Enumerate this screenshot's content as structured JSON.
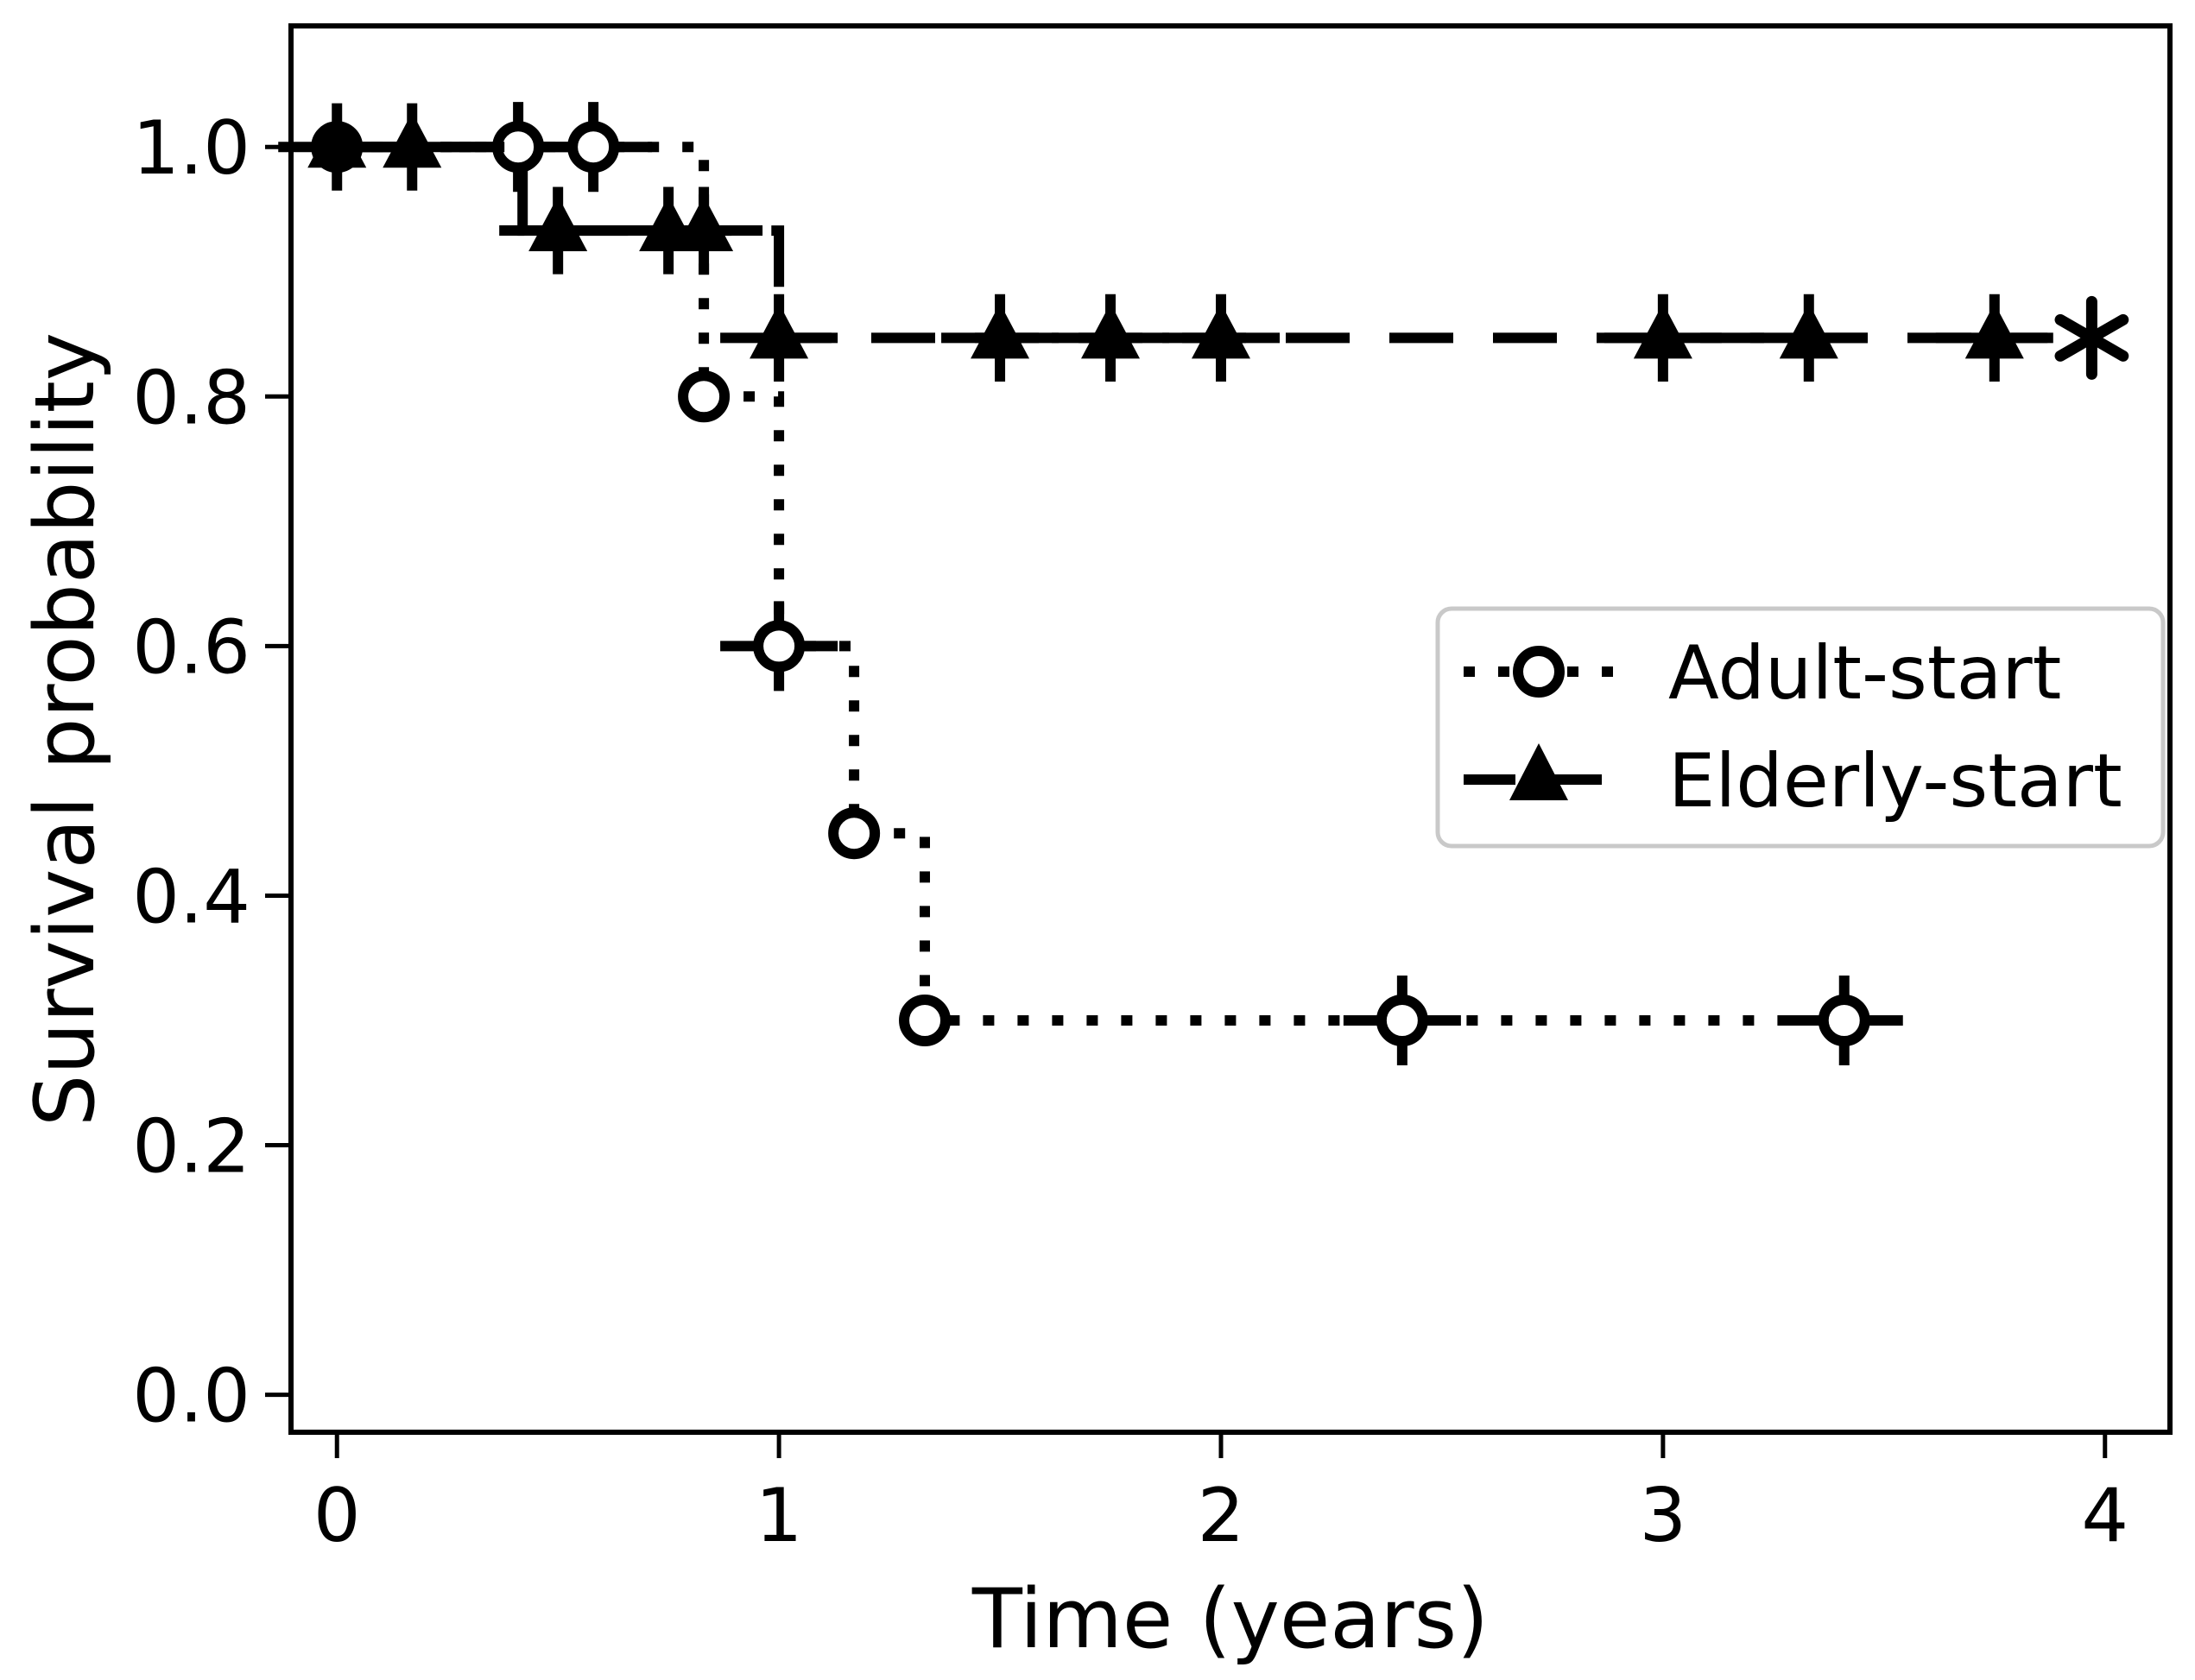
{
  "chart_data": {
    "type": "line",
    "subtype": "kaplan-meier-step-plot",
    "title": "",
    "xlabel": "Time (years)",
    "ylabel": "Survival probability",
    "xlim": [
      -0.104,
      4.147
    ],
    "ylim": [
      -0.03,
      1.097
    ],
    "grid": false,
    "xticks": [
      {
        "v": 0,
        "label": "0"
      },
      {
        "v": 1,
        "label": "1"
      },
      {
        "v": 2,
        "label": "2"
      },
      {
        "v": 3,
        "label": "3"
      },
      {
        "v": 4,
        "label": "4"
      }
    ],
    "yticks": [
      {
        "v": 0.0,
        "label": "0.0"
      },
      {
        "v": 0.2,
        "label": "0.2"
      },
      {
        "v": 0.4,
        "label": "0.4"
      },
      {
        "v": 0.6,
        "label": "0.6"
      },
      {
        "v": 0.8,
        "label": "0.8"
      },
      {
        "v": 1.0,
        "label": "1.0"
      }
    ],
    "series": [
      {
        "name": "Adult-start",
        "line_style": "dotted",
        "marker": "open-circle",
        "color": "#000000",
        "yerr": 0.036,
        "steps": [
          [
            0,
            1.0
          ],
          [
            0.83,
            1.0
          ],
          [
            0.83,
            0.8
          ],
          [
            1.0,
            0.8
          ],
          [
            1.0,
            0.6
          ],
          [
            1.17,
            0.6
          ],
          [
            1.17,
            0.45
          ],
          [
            1.33,
            0.45
          ],
          [
            1.33,
            0.3
          ],
          [
            3.52,
            0.3
          ]
        ],
        "points": [
          {
            "x": 0.0,
            "y": 1.0,
            "err": false
          },
          {
            "x": 0.41,
            "y": 1.0,
            "err": true
          },
          {
            "x": 0.58,
            "y": 1.0,
            "err": true
          },
          {
            "x": 0.83,
            "y": 0.8,
            "err": false
          },
          {
            "x": 1.0,
            "y": 0.6,
            "err": true
          },
          {
            "x": 1.17,
            "y": 0.45,
            "err": false
          },
          {
            "x": 1.33,
            "y": 0.3,
            "err": false
          },
          {
            "x": 2.41,
            "y": 0.3,
            "err": true
          },
          {
            "x": 3.41,
            "y": 0.3,
            "err": true
          }
        ]
      },
      {
        "name": "Elderly-start",
        "line_style": "dashed",
        "marker": "filled-triangle",
        "color": "#000000",
        "yerr": 0.035,
        "steps": [
          [
            0,
            1.0
          ],
          [
            0.42,
            1.0
          ],
          [
            0.42,
            0.933
          ],
          [
            1.0,
            0.933
          ],
          [
            1.0,
            0.847
          ],
          [
            3.87,
            0.847
          ]
        ],
        "points": [
          {
            "x": 0.0,
            "y": 1.0,
            "err": true
          },
          {
            "x": 0.17,
            "y": 1.0,
            "err": true
          },
          {
            "x": 0.5,
            "y": 0.933,
            "err": true
          },
          {
            "x": 0.75,
            "y": 0.933,
            "err": true
          },
          {
            "x": 0.83,
            "y": 0.933,
            "err": true
          },
          {
            "x": 1.0,
            "y": 0.847,
            "err": true
          },
          {
            "x": 1.5,
            "y": 0.847,
            "err": true
          },
          {
            "x": 1.75,
            "y": 0.847,
            "err": true
          },
          {
            "x": 2.0,
            "y": 0.847,
            "err": true
          },
          {
            "x": 3.0,
            "y": 0.847,
            "err": true
          },
          {
            "x": 3.33,
            "y": 0.847,
            "err": true
          },
          {
            "x": 3.75,
            "y": 0.847,
            "err": true
          }
        ]
      }
    ],
    "annotations": [
      {
        "text": "*",
        "shape": "six-ray-asterisk",
        "x": 3.97,
        "y": 0.847
      }
    ],
    "legend": {
      "position": "center-right",
      "entries": [
        {
          "label": "Adult-start"
        },
        {
          "label": "Elderly-start"
        }
      ]
    },
    "colors": {
      "foreground": "#000000",
      "background": "#ffffff",
      "legend_border": "#c9c9c9"
    }
  }
}
